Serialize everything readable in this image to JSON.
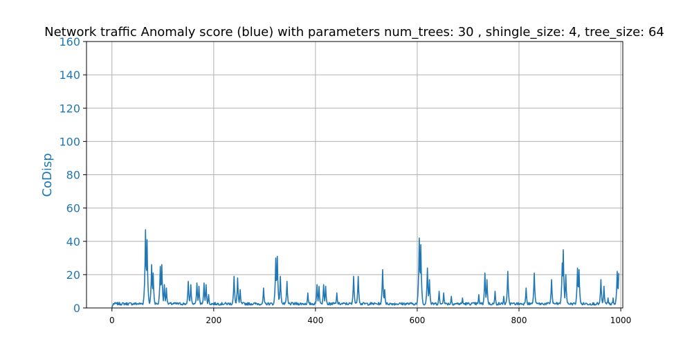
{
  "chart_data": {
    "type": "line",
    "title": "Network traffic Anomaly score (blue) with parameters num_trees: 30 , shingle_size: 4, tree_size: 64",
    "xlabel": "",
    "ylabel": "CoDisp",
    "xlim": [
      -50,
      1004
    ],
    "ylim": [
      0,
      160
    ],
    "xticks": [
      0,
      200,
      400,
      600,
      800,
      1000
    ],
    "yticks": [
      0,
      20,
      40,
      60,
      80,
      100,
      120,
      140,
      160
    ],
    "grid": true,
    "colors": {
      "line": "#1f77b4",
      "ytick": "#1f77b4",
      "grid": "#b0b0b0",
      "axis": "#000000"
    },
    "series": [
      {
        "name": "",
        "baseline": 2.5,
        "peaks": [
          [
            66,
            47
          ],
          [
            69,
            41
          ],
          [
            78,
            26
          ],
          [
            81,
            21
          ],
          [
            95,
            25
          ],
          [
            98,
            26
          ],
          [
            103,
            14
          ],
          [
            107,
            12
          ],
          [
            150,
            16
          ],
          [
            155,
            14
          ],
          [
            167,
            15
          ],
          [
            171,
            13
          ],
          [
            181,
            15
          ],
          [
            185,
            14
          ],
          [
            190,
            8
          ],
          [
            240,
            19
          ],
          [
            247,
            18
          ],
          [
            252,
            11
          ],
          [
            298,
            12
          ],
          [
            322,
            30
          ],
          [
            325,
            31
          ],
          [
            331,
            19
          ],
          [
            344,
            16
          ],
          [
            385,
            9
          ],
          [
            403,
            14
          ],
          [
            407,
            13
          ],
          [
            416,
            14
          ],
          [
            420,
            13
          ],
          [
            442,
            9
          ],
          [
            475,
            19
          ],
          [
            484,
            19
          ],
          [
            532,
            23
          ],
          [
            536,
            11
          ],
          [
            604,
            42
          ],
          [
            607,
            38
          ],
          [
            620,
            24
          ],
          [
            624,
            17
          ],
          [
            643,
            10
          ],
          [
            652,
            9
          ],
          [
            667,
            7
          ],
          [
            689,
            6
          ],
          [
            721,
            8
          ],
          [
            733,
            21
          ],
          [
            737,
            17
          ],
          [
            753,
            10
          ],
          [
            770,
            7
          ],
          [
            778,
            22
          ],
          [
            814,
            12
          ],
          [
            830,
            21
          ],
          [
            864,
            17
          ],
          [
            885,
            27
          ],
          [
            887,
            35
          ],
          [
            892,
            20
          ],
          [
            915,
            24
          ],
          [
            918,
            23
          ],
          [
            961,
            17
          ],
          [
            967,
            13
          ],
          [
            975,
            6
          ],
          [
            985,
            6
          ],
          [
            993,
            22
          ],
          [
            996,
            21
          ]
        ]
      }
    ]
  }
}
